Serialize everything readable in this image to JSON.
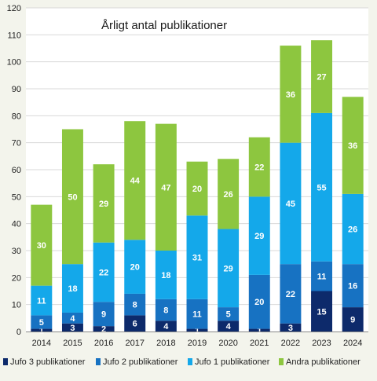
{
  "chart_data": {
    "type": "bar",
    "stacked": true,
    "title": "Årligt antal publikationer",
    "categories": [
      "2014",
      "2015",
      "2016",
      "2017",
      "2018",
      "2019",
      "2020",
      "2021",
      "2022",
      "2023",
      "2024"
    ],
    "series": [
      {
        "name": "Jufo 3 publikationer",
        "color": "#0d2a6b",
        "values": [
          1,
          3,
          2,
          6,
          4,
          1,
          4,
          1,
          3,
          15,
          9
        ]
      },
      {
        "name": "Jufo 2 publikationer",
        "color": "#1772c2",
        "values": [
          5,
          4,
          9,
          8,
          8,
          11,
          5,
          20,
          22,
          11,
          16
        ]
      },
      {
        "name": "Jufo 1 publikationer",
        "color": "#14a8ea",
        "values": [
          11,
          18,
          22,
          20,
          18,
          31,
          29,
          29,
          45,
          55,
          26
        ]
      },
      {
        "name": "Andra publikationer",
        "color": "#8dc63f",
        "values": [
          30,
          50,
          29,
          44,
          47,
          20,
          26,
          22,
          36,
          27,
          36
        ]
      }
    ],
    "ylim": [
      0,
      120
    ],
    "yticks": [
      0,
      10,
      20,
      30,
      40,
      50,
      60,
      70,
      80,
      90,
      100,
      110,
      120
    ],
    "grid": true,
    "legend_position": "bottom"
  }
}
